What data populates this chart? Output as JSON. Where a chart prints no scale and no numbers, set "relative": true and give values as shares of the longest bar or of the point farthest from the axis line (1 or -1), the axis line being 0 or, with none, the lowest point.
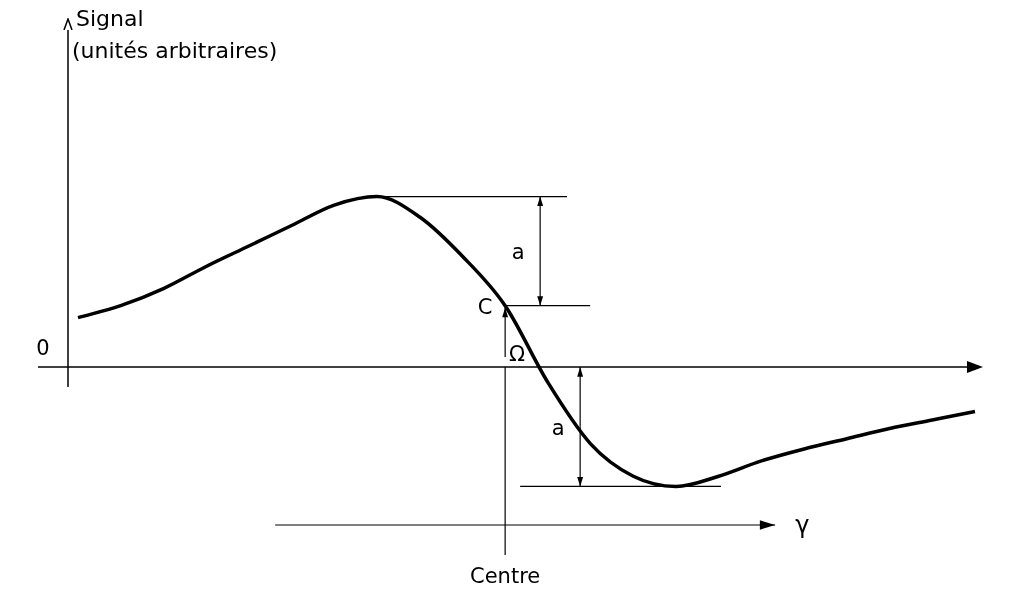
{
  "chart_data": {
    "type": "line",
    "relative": true,
    "xlabel": "γ",
    "color": "#000000",
    "marker": "none",
    "legend": false,
    "tick_labels": false,
    "categories": [
      null,
      null,
      null,
      null,
      null,
      null,
      null,
      null,
      null,
      null,
      null,
      null,
      null,
      null,
      null,
      null,
      null,
      null,
      null,
      null,
      null,
      null
    ],
    "values": [
      0.29,
      0.36,
      0.46,
      0.59,
      0.71,
      0.83,
      0.95,
      1,
      0.88,
      0.65,
      0.36,
      -0.09,
      -0.45,
      -0.64,
      -0.7,
      -0.64,
      -0.55,
      -0.48,
      -0.42,
      -0.36,
      -0.31,
      -0.26
    ],
    "annotations": [
      "C",
      "Ω",
      "a",
      "a",
      "Centre",
      "0",
      "Signal (unités arbitraires)"
    ]
  }
}
